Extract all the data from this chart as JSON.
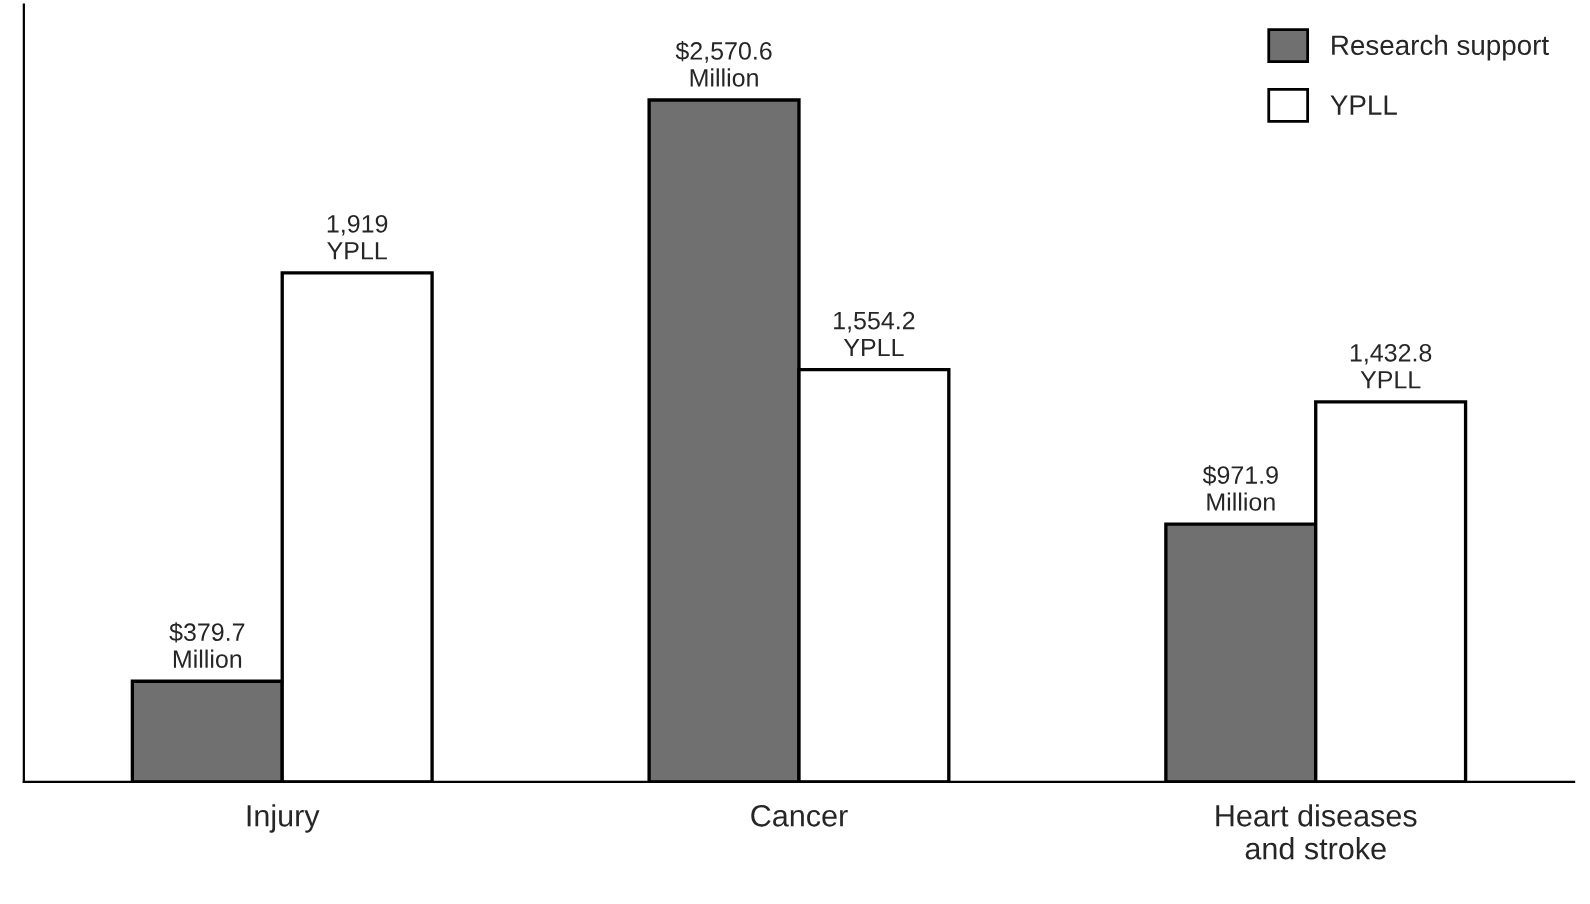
{
  "chart_data": {
    "type": "bar",
    "categories": [
      "Injury",
      "Cancer",
      "Heart diseases\nand stroke"
    ],
    "series": [
      {
        "name": "Research support",
        "color": "#707070",
        "values": [
          379.7,
          2570.6,
          971.9
        ],
        "value_labels": [
          "$379.7\nMillion",
          "$2,570.6\nMillion",
          "$971.9\nMillion"
        ]
      },
      {
        "name": "YPLL",
        "color": "#ffffff",
        "values": [
          1919,
          1554.2,
          1432.8
        ],
        "value_labels": [
          "1,919\nYPLL",
          "1,554.2\nYPLL",
          "1,432.8\nYPLL"
        ]
      }
    ],
    "legend": "top right",
    "grid": false,
    "tick_labels": "x"
  }
}
